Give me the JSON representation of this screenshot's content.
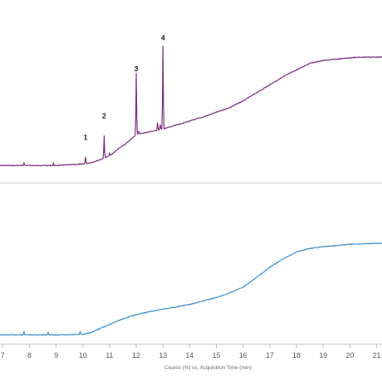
{
  "chart_data": {
    "type": "line",
    "xlabel": "Counts (%) vs. Acquisition Time (min)",
    "xlim": [
      6.9,
      21.2
    ],
    "x_ticks": [
      "7",
      "8",
      "9",
      "10",
      "11",
      "12",
      "13",
      "14",
      "15",
      "16",
      "17",
      "18",
      "19",
      "20",
      "21"
    ],
    "colors": {
      "top": "#7a2a7e",
      "bottom": "#3a8fd0",
      "axis": "#bbbbbb"
    },
    "panels": [
      {
        "name": "top",
        "ylim": [
          0,
          100
        ],
        "peak_labels": [
          {
            "text": "1",
            "x": 10.1,
            "y": 20
          },
          {
            "text": "2",
            "x": 10.8,
            "y": 36
          },
          {
            "text": "3",
            "x": 12.0,
            "y": 71
          },
          {
            "text": "4",
            "x": 13.0,
            "y": 94
          }
        ],
        "baseline": [
          [
            6.9,
            1.0
          ],
          [
            7.5,
            1.0
          ],
          [
            8.0,
            1.0
          ],
          [
            8.5,
            1.0
          ],
          [
            9.0,
            1.0
          ],
          [
            9.5,
            1.5
          ],
          [
            10.0,
            2.0
          ],
          [
            10.3,
            3.0
          ],
          [
            10.6,
            5.0
          ],
          [
            11.0,
            8.0
          ],
          [
            11.3,
            13.0
          ],
          [
            11.6,
            17.0
          ],
          [
            12.0,
            24.0
          ],
          [
            12.5,
            26.0
          ],
          [
            13.0,
            28.0
          ],
          [
            13.5,
            31.0
          ],
          [
            14.0,
            34.0
          ],
          [
            14.5,
            37.0
          ],
          [
            15.0,
            40.5
          ],
          [
            15.5,
            44.0
          ],
          [
            16.0,
            49.0
          ],
          [
            16.5,
            55.0
          ],
          [
            17.0,
            61.0
          ],
          [
            17.5,
            67.0
          ],
          [
            18.0,
            72.0
          ],
          [
            18.5,
            77.0
          ],
          [
            19.0,
            79.0
          ],
          [
            19.5,
            80.0
          ],
          [
            20.0,
            81.0
          ],
          [
            20.5,
            81.5
          ],
          [
            21.2,
            81.5
          ]
        ],
        "spikes": [
          {
            "x": 7.8,
            "h": 2
          },
          {
            "x": 8.9,
            "h": 1.5
          },
          {
            "x": 10.1,
            "h": 5
          },
          {
            "x": 10.8,
            "h": 17
          },
          {
            "x": 11.0,
            "h": 2
          },
          {
            "x": 12.0,
            "h": 46
          },
          {
            "x": 12.1,
            "h": 2
          },
          {
            "x": 12.8,
            "h": 6
          },
          {
            "x": 12.9,
            "h": 4
          },
          {
            "x": 13.0,
            "h": 62
          }
        ]
      },
      {
        "name": "bottom",
        "ylim": [
          0,
          100
        ],
        "baseline": [
          [
            6.9,
            1.0
          ],
          [
            7.5,
            1.0
          ],
          [
            8.0,
            1.0
          ],
          [
            8.5,
            1.0
          ],
          [
            9.0,
            1.0
          ],
          [
            9.5,
            1.0
          ],
          [
            10.0,
            1.5
          ],
          [
            10.3,
            3.0
          ],
          [
            10.8,
            8.0
          ],
          [
            11.3,
            13.0
          ],
          [
            11.8,
            17.0
          ],
          [
            12.3,
            20.0
          ],
          [
            13.0,
            23.0
          ],
          [
            13.5,
            25.0
          ],
          [
            14.0,
            27.0
          ],
          [
            14.5,
            30.0
          ],
          [
            15.0,
            33.0
          ],
          [
            15.5,
            37.0
          ],
          [
            16.0,
            42.0
          ],
          [
            16.5,
            50.0
          ],
          [
            17.0,
            59.0
          ],
          [
            17.5,
            66.0
          ],
          [
            18.0,
            72.0
          ],
          [
            18.5,
            75.0
          ],
          [
            19.0,
            76.5
          ],
          [
            19.5,
            77.5
          ],
          [
            20.0,
            78.5
          ],
          [
            20.5,
            79.0
          ],
          [
            21.2,
            79.5
          ]
        ],
        "spikes": [
          {
            "x": 7.8,
            "h": 3
          },
          {
            "x": 8.7,
            "h": 2.5
          },
          {
            "x": 9.9,
            "h": 2.5
          }
        ]
      }
    ]
  }
}
